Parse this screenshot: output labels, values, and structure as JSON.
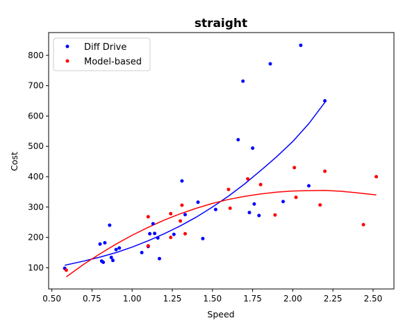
{
  "chart_data": {
    "type": "scatter",
    "title": "straight",
    "xlabel": "Speed",
    "ylabel": "Cost",
    "xlim": [
      0.48,
      2.63
    ],
    "ylim": [
      30,
      875
    ],
    "xticks": [
      0.5,
      0.75,
      1.0,
      1.25,
      1.5,
      1.75,
      2.0,
      2.25,
      2.5
    ],
    "xtick_labels": [
      "0.50",
      "0.75",
      "1.00",
      "1.25",
      "1.50",
      "1.75",
      "2.00",
      "2.25",
      "2.50"
    ],
    "yticks": [
      100,
      200,
      300,
      400,
      500,
      600,
      700,
      800
    ],
    "ytick_labels": [
      "100",
      "200",
      "300",
      "400",
      "500",
      "600",
      "700",
      "800"
    ],
    "grid": false,
    "legend_position": "upper-left",
    "series": [
      {
        "name": "Diff Drive",
        "color": "#0000ff",
        "x": [
          0.58,
          0.8,
          0.81,
          0.82,
          0.83,
          0.86,
          0.87,
          0.88,
          0.9,
          0.92,
          1.06,
          1.1,
          1.11,
          1.13,
          1.14,
          1.16,
          1.17,
          1.26,
          1.31,
          1.33,
          1.41,
          1.44,
          1.52,
          1.66,
          1.69,
          1.73,
          1.75,
          1.76,
          1.79,
          1.86,
          1.94,
          2.05,
          2.1,
          2.2
        ],
        "y": [
          98,
          178,
          122,
          118,
          182,
          240,
          134,
          124,
          160,
          165,
          150,
          170,
          212,
          245,
          213,
          198,
          130,
          210,
          386,
          275,
          316,
          196,
          292,
          522,
          715,
          282,
          494,
          310,
          272,
          772,
          318,
          833,
          370,
          650
        ]
      },
      {
        "name": "Model-based",
        "color": "#ff0000",
        "x": [
          0.59,
          1.1,
          1.1,
          1.24,
          1.24,
          1.3,
          1.31,
          1.33,
          1.6,
          1.61,
          1.72,
          1.8,
          1.89,
          2.01,
          2.02,
          2.17,
          2.2,
          2.44,
          2.52
        ],
        "y": [
          92,
          172,
          268,
          278,
          200,
          254,
          306,
          212,
          358,
          296,
          393,
          374,
          274,
          430,
          332,
          307,
          418,
          242,
          400
        ]
      }
    ],
    "fits": [
      {
        "series": "Diff Drive",
        "color": "#0000ff",
        "x": [
          0.58,
          0.7,
          0.8,
          0.9,
          1.0,
          1.1,
          1.2,
          1.3,
          1.4,
          1.5,
          1.6,
          1.7,
          1.8,
          1.9,
          2.0,
          2.1,
          2.2
        ],
        "y": [
          108,
          122,
          135,
          150,
          168,
          189,
          212,
          238,
          267,
          300,
          336,
          376,
          420,
          466,
          516,
          575,
          645
        ]
      },
      {
        "series": "Model-based",
        "color": "#ff0000",
        "x": [
          0.59,
          0.7,
          0.8,
          0.9,
          1.0,
          1.1,
          1.2,
          1.3,
          1.4,
          1.5,
          1.6,
          1.7,
          1.8,
          1.9,
          2.0,
          2.1,
          2.2,
          2.3,
          2.4,
          2.52
        ],
        "y": [
          70,
          112,
          146,
          178,
          207,
          233,
          257,
          278,
          296,
          312,
          325,
          335,
          343,
          349,
          353,
          354,
          355,
          352,
          347,
          340
        ]
      }
    ]
  }
}
